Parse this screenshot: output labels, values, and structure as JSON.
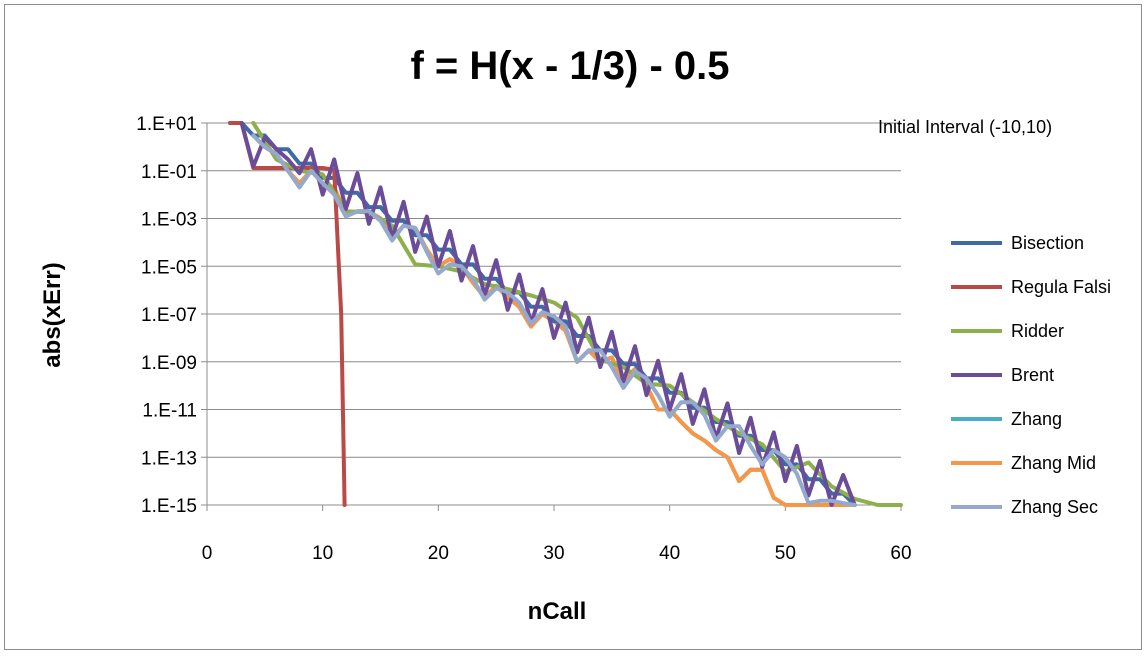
{
  "chart_data": {
    "type": "line",
    "title": "f = H(x - 1/3) - 0.5",
    "xlabel": "nCall",
    "ylabel": "abs(xErr)",
    "xlim": [
      0,
      60
    ],
    "ylim": [
      1e-15,
      10
    ],
    "yscale": "log",
    "grid": "horizontal",
    "legend_position": "right",
    "annotation": "Initial Interval (-10,10)",
    "x_ticks": [
      "0",
      "10",
      "20",
      "30",
      "40",
      "50",
      "60"
    ],
    "y_ticks": [
      "1.E+01",
      "1.E-01",
      "1.E-03",
      "1.E-05",
      "1.E-07",
      "1.E-09",
      "1.E-11",
      "1.E-13",
      "1.E-15"
    ],
    "series": [
      {
        "name": "Bisection",
        "color": "#3e6aa5",
        "x": [
          2,
          3,
          4,
          5,
          6,
          7,
          8,
          9,
          10,
          11,
          12,
          13,
          14,
          15,
          16,
          17,
          18,
          19,
          20,
          21,
          22,
          23,
          24,
          25,
          26,
          27,
          28,
          29,
          30,
          31,
          32,
          33,
          34,
          35,
          36,
          37,
          38,
          39,
          40,
          41,
          42,
          43,
          44,
          45,
          46,
          47,
          48,
          49,
          50,
          51,
          52,
          53,
          54,
          55,
          56
        ],
        "y": [
          10,
          10,
          3,
          3,
          0.8,
          0.8,
          0.2,
          0.2,
          0.05,
          0.05,
          0.012,
          0.012,
          0.003,
          0.003,
          0.0008,
          0.0008,
          0.0002,
          0.0002,
          5e-05,
          5e-05,
          1.2e-05,
          1.2e-05,
          3e-06,
          3e-06,
          8e-07,
          8e-07,
          2e-07,
          2e-07,
          5e-08,
          5e-08,
          1.2e-08,
          1.2e-08,
          3e-09,
          3e-09,
          8e-10,
          8e-10,
          2e-10,
          2e-10,
          5e-11,
          5e-11,
          1.2e-11,
          1.2e-11,
          3e-12,
          3e-12,
          8e-13,
          8e-13,
          2e-13,
          2e-13,
          5e-14,
          5e-14,
          1.2e-14,
          1.2e-14,
          3e-15,
          3e-15,
          1e-15
        ]
      },
      {
        "name": "Regula Falsi",
        "color": "#b94a48",
        "x": [
          2,
          3,
          4,
          5,
          6,
          7,
          8,
          9,
          10,
          11,
          11.6,
          11.9
        ],
        "y": [
          10,
          10,
          0.13,
          0.13,
          0.13,
          0.13,
          0.13,
          0.13,
          0.13,
          0.11,
          1e-07,
          1e-15
        ]
      },
      {
        "name": "Ridder",
        "color": "#8db04c",
        "x": [
          4,
          6,
          8,
          10,
          12,
          14,
          16,
          18,
          20,
          22,
          24,
          26,
          28,
          30,
          32,
          34,
          36,
          38,
          40,
          42,
          44,
          46,
          48,
          50,
          52,
          54,
          56,
          58,
          60
        ],
        "y": [
          10,
          0.3,
          0.1,
          0.07,
          0.002,
          0.0018,
          0.0005,
          1.2e-05,
          1e-05,
          6e-06,
          1.8e-06,
          1.1e-06,
          6e-07,
          3e-07,
          7e-08,
          1.2e-09,
          6e-10,
          1.2e-10,
          1e-10,
          2e-11,
          4e-12,
          1e-12,
          3.5e-13,
          2.5e-14,
          6e-14,
          6e-15,
          1.8e-15,
          9e-16,
          1e-16
        ]
      },
      {
        "name": "Brent",
        "color": "#6b4c98",
        "x": [
          3,
          4,
          5,
          6,
          7,
          8,
          9,
          10,
          11,
          12,
          13,
          14,
          15,
          16,
          17,
          18,
          19,
          20,
          21,
          22,
          23,
          24,
          25,
          26,
          27,
          28,
          29,
          30,
          31,
          32,
          33,
          34,
          35,
          36,
          37,
          38,
          39,
          40,
          41,
          42,
          43,
          44,
          45,
          46,
          47,
          48,
          49,
          50,
          51,
          52,
          53,
          54,
          55,
          56
        ],
        "y": [
          10,
          0.15,
          2.5,
          0.8,
          0.3,
          0.08,
          0.8,
          0.01,
          0.3,
          0.0025,
          0.08,
          0.0006,
          0.02,
          0.00015,
          0.005,
          4e-05,
          0.0012,
          1e-05,
          0.0003,
          2.5e-06,
          7e-05,
          6e-07,
          1.8e-05,
          1.5e-07,
          4.5e-06,
          4e-08,
          1.1e-06,
          1e-08,
          3e-07,
          2.5e-09,
          7e-08,
          6e-10,
          1.8e-08,
          1.5e-10,
          4.5e-09,
          4e-11,
          1.1e-09,
          1e-11,
          3e-10,
          2.5e-12,
          7e-11,
          6e-13,
          1.8e-11,
          1.5e-13,
          4.5e-12,
          4e-14,
          1.1e-12,
          1e-14,
          3e-13,
          2.5e-15,
          7e-14,
          6e-16,
          1.8e-14,
          1e-16
        ]
      },
      {
        "name": "Zhang",
        "color": "#4bacc6",
        "x": [
          4,
          5,
          6,
          7,
          8,
          9,
          10,
          11,
          12,
          13,
          14,
          15,
          16,
          17,
          18,
          19,
          20,
          21,
          22,
          23,
          24,
          25,
          26,
          27,
          28,
          29,
          30,
          31,
          32,
          33,
          34,
          35,
          36,
          37,
          38,
          39,
          40,
          41,
          42,
          43,
          44,
          45,
          46,
          47,
          48,
          49,
          50,
          51,
          52,
          53,
          54,
          55,
          56
        ],
        "y": [
          3,
          1,
          0.5,
          0.1,
          0.03,
          0.1,
          0.03,
          0.02,
          0.0015,
          0.002,
          0.002,
          0.001,
          0.00015,
          0.0005,
          0.0004,
          5e-05,
          1e-05,
          2e-05,
          1e-05,
          2e-06,
          5e-07,
          1.5e-06,
          5e-07,
          2e-07,
          3e-08,
          1e-07,
          5e-08,
          2e-08,
          1e-09,
          3e-09,
          1e-09,
          1.5e-09,
          1.5e-10,
          5e-10,
          1e-10,
          1e-11,
          1e-11,
          3e-12,
          1e-12,
          5e-13,
          2e-13,
          1e-13,
          1e-14,
          3e-14,
          3e-14,
          2e-15,
          1e-15,
          1e-15,
          1e-15,
          1e-15,
          1e-15,
          1e-15,
          1e-15
        ]
      },
      {
        "name": "Zhang Mid",
        "color": "#f79646",
        "x": [
          4,
          5,
          6,
          7,
          8,
          9,
          10,
          11,
          12,
          13,
          14,
          15,
          16,
          17,
          18,
          19,
          20,
          21,
          22,
          23,
          24,
          25,
          26,
          27,
          28,
          29,
          30,
          31,
          32,
          33,
          34,
          35,
          36,
          37,
          38,
          39,
          40,
          41,
          42,
          43,
          44,
          45,
          46,
          47,
          48,
          49,
          50,
          51,
          52,
          53,
          54,
          55,
          56
        ],
        "y": [
          3,
          1,
          0.5,
          0.1,
          0.03,
          0.1,
          0.03,
          0.02,
          0.0015,
          0.002,
          0.002,
          0.001,
          0.00015,
          0.0005,
          0.0004,
          5e-05,
          1e-05,
          2e-05,
          1e-05,
          2e-06,
          5e-07,
          1.5e-06,
          5e-07,
          2e-07,
          3e-08,
          1e-07,
          5e-08,
          2e-08,
          1e-09,
          3e-09,
          1e-09,
          1.5e-09,
          1.5e-10,
          5e-10,
          1e-10,
          1e-11,
          1e-11,
          3e-12,
          1e-12,
          5e-13,
          2e-13,
          1e-13,
          1e-14,
          3e-14,
          3e-14,
          2e-15,
          1e-15,
          1e-15,
          1e-15,
          1e-15,
          1e-15,
          1e-15,
          1e-15
        ]
      },
      {
        "name": "Zhang Sec",
        "color": "#94a9cc",
        "x": [
          4,
          5,
          6,
          7,
          8,
          9,
          10,
          11,
          12,
          13,
          14,
          15,
          16,
          17,
          18,
          19,
          20,
          21,
          22,
          23,
          24,
          25,
          26,
          27,
          28,
          29,
          30,
          31,
          32,
          33,
          34,
          35,
          36,
          37,
          38,
          39,
          40,
          41,
          42,
          43,
          44,
          45,
          46,
          47,
          48,
          49,
          50,
          51,
          52,
          53,
          54,
          55,
          56
        ],
        "y": [
          3,
          1,
          0.5,
          0.1,
          0.02,
          0.1,
          0.03,
          0.01,
          0.0012,
          0.002,
          0.002,
          0.0008,
          0.00012,
          0.0005,
          0.0004,
          4e-05,
          5e-06,
          1.2e-05,
          1e-05,
          3e-06,
          4e-07,
          1.2e-06,
          8e-07,
          3e-07,
          4e-08,
          1.2e-07,
          8e-08,
          3e-08,
          1e-09,
          3e-09,
          3e-09,
          6e-10,
          8e-11,
          4e-10,
          2e-10,
          4e-11,
          5e-12,
          2e-11,
          2e-11,
          6e-12,
          5e-13,
          2e-12,
          2e-12,
          3e-13,
          5e-14,
          2e-13,
          1e-13,
          2e-14,
          1.2e-15,
          1.5e-15,
          1.5e-15,
          1.2e-15,
          1e-15
        ]
      }
    ]
  }
}
